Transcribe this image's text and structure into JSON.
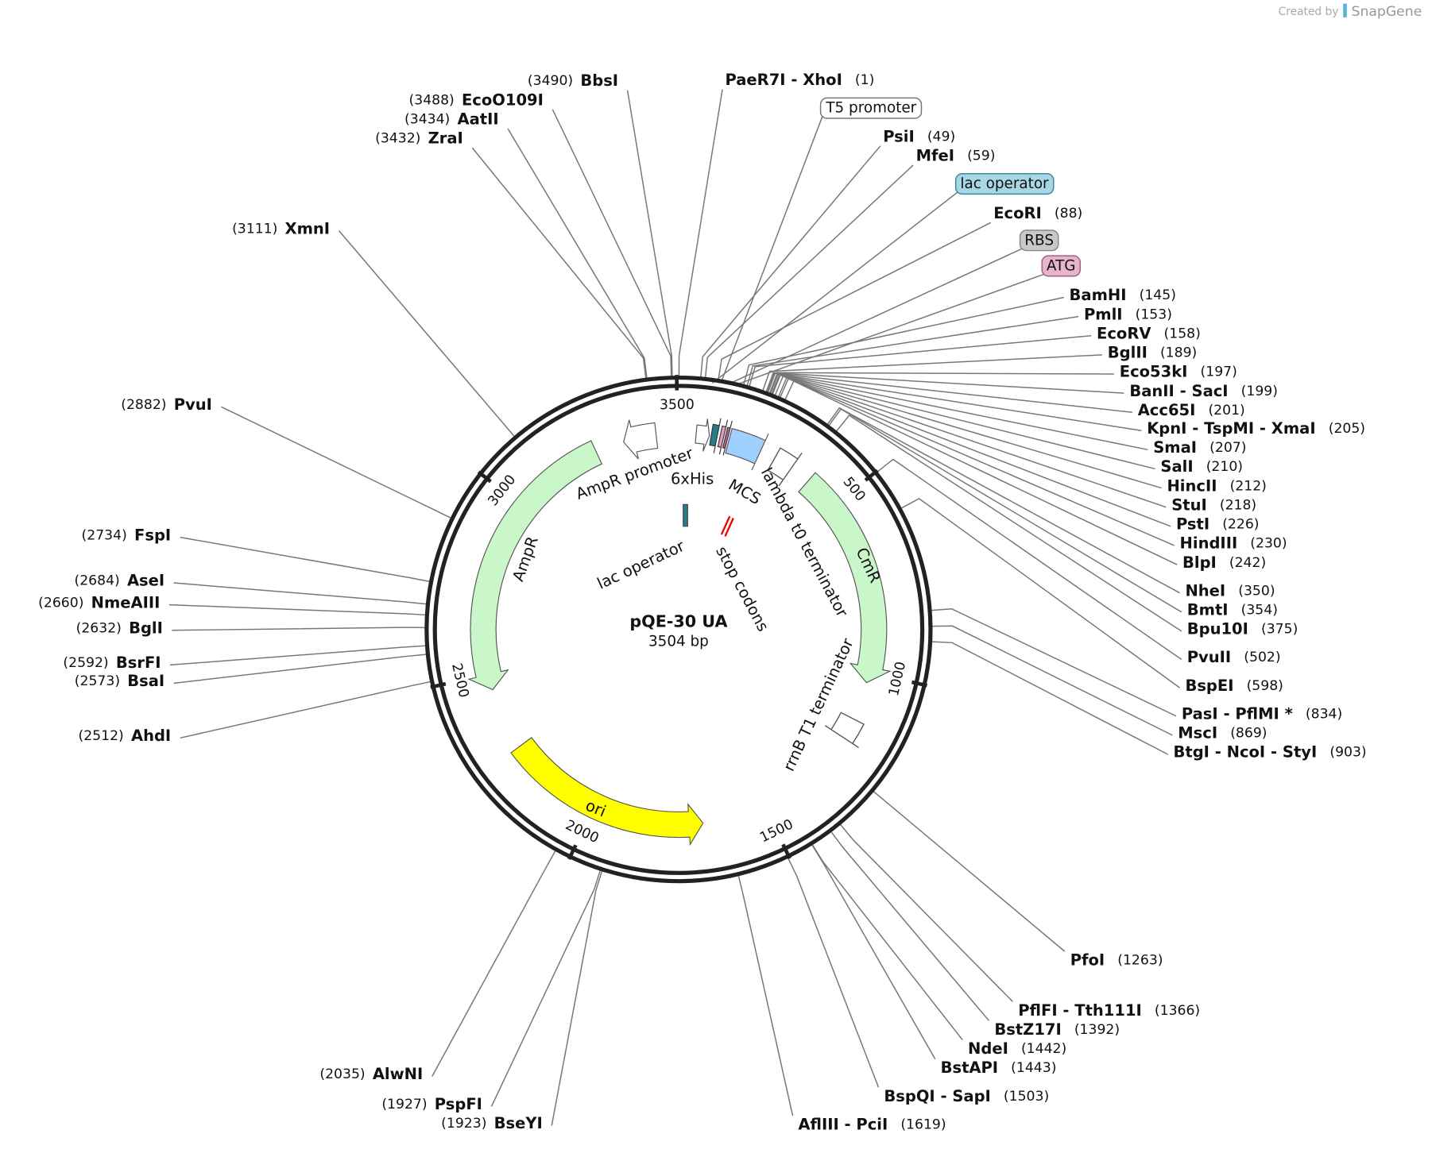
{
  "credit": {
    "prefix": "Created by",
    "brand": "SnapGene"
  },
  "map": {
    "name": "pQE-30 UA",
    "length": "3504 bp",
    "ticks": [
      "500",
      "1000",
      "1500",
      "2000",
      "2500",
      "3000",
      "3500"
    ]
  },
  "enzymes": [
    {
      "label": "BbsI",
      "site": "(3490)"
    },
    {
      "label": "EcoO109I",
      "site": "(3488)"
    },
    {
      "label": "AatII",
      "site": "(3434)"
    },
    {
      "label": "ZraI",
      "site": "(3432)"
    },
    {
      "label": "XmnI",
      "site": "(3111)"
    },
    {
      "label": "PvuI",
      "site": "(2882)"
    },
    {
      "label": "FspI",
      "site": "(2734)"
    },
    {
      "label": "AseI",
      "site": "(2684)"
    },
    {
      "label": "NmeAIII",
      "site": "(2660)"
    },
    {
      "label": "BglI",
      "site": "(2632)"
    },
    {
      "label": "BsrFI",
      "site": "(2592)"
    },
    {
      "label": "BsaI",
      "site": "(2573)"
    },
    {
      "label": "AhdI",
      "site": "(2512)"
    },
    {
      "label": "AlwNI",
      "site": "(2035)"
    },
    {
      "label": "PspFI",
      "site": "(1927)"
    },
    {
      "label": "BseYI",
      "site": "(1923)"
    },
    {
      "label": "PaeR7I  -  XhoI",
      "site": "(1)"
    },
    {
      "label": "PsiI",
      "site": "(49)"
    },
    {
      "label": "MfeI",
      "site": "(59)"
    },
    {
      "label": "EcoRI",
      "site": "(88)"
    },
    {
      "label": "BamHI",
      "site": "(145)"
    },
    {
      "label": "PmlI",
      "site": "(153)"
    },
    {
      "label": "EcoRV",
      "site": "(158)"
    },
    {
      "label": "BglII",
      "site": "(189)"
    },
    {
      "label": "Eco53kI",
      "site": "(197)"
    },
    {
      "label": "BanII  -  SacI",
      "site": "(199)"
    },
    {
      "label": "Acc65I",
      "site": "(201)"
    },
    {
      "label": "KpnI  -  TspMI  -  XmaI",
      "site": "(205)"
    },
    {
      "label": "SmaI",
      "site": "(207)"
    },
    {
      "label": "SalI",
      "site": "(210)"
    },
    {
      "label": "HincII",
      "site": "(212)"
    },
    {
      "label": "StuI",
      "site": "(218)"
    },
    {
      "label": "PstI",
      "site": "(226)"
    },
    {
      "label": "HindIII",
      "site": "(230)"
    },
    {
      "label": "BlpI",
      "site": "(242)"
    },
    {
      "label": "NheI",
      "site": "(350)"
    },
    {
      "label": "BmtI",
      "site": "(354)"
    },
    {
      "label": "Bpu10I",
      "site": "(375)"
    },
    {
      "label": "PvuII",
      "site": "(502)"
    },
    {
      "label": "BspEI",
      "site": "(598)"
    },
    {
      "label": "PasI  -  PflMI *",
      "site": "(834)"
    },
    {
      "label": "MscI",
      "site": "(869)"
    },
    {
      "label": "BtgI  -  NcoI  -  StyI",
      "site": "(903)"
    },
    {
      "label": "PfoI",
      "site": "(1263)"
    },
    {
      "label": "PflFI  -  Tth111I",
      "site": "(1366)"
    },
    {
      "label": "BstZ17I",
      "site": "(1392)"
    },
    {
      "label": "NdeI",
      "site": "(1442)"
    },
    {
      "label": "BstAPI",
      "site": "(1443)"
    },
    {
      "label": "BspQI  -  SapI",
      "site": "(1503)"
    },
    {
      "label": "AflIII  -  PciI",
      "site": "(1619)"
    }
  ],
  "boxed_features": [
    "T5 promoter",
    "lac operator",
    "RBS",
    "ATG"
  ],
  "features": {
    "ampr": "AmpR",
    "ampr_promoter": "AmpR promoter",
    "his": "6xHis",
    "mcs": "MCS",
    "lambda": "lambda t0 terminator",
    "cmr": "CmR",
    "rrnb": "rrnB T1 terminator",
    "ori": "ori",
    "lac_operator": "lac operator",
    "stop_codons": "stop codons"
  }
}
